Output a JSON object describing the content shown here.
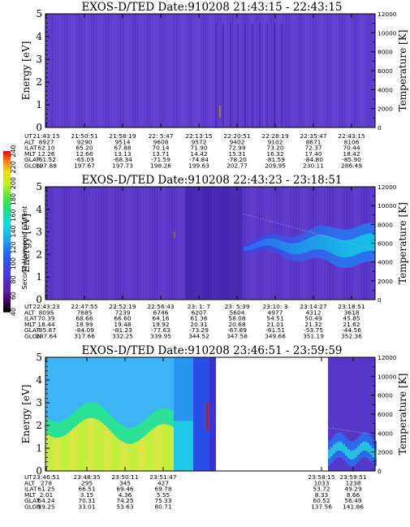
{
  "colorbar": {
    "label": "Second Harmonic Current",
    "ticks": [
      "40",
      "60",
      "80",
      "100",
      "120",
      "140",
      "160",
      "180",
      "200",
      "220",
      "240"
    ]
  },
  "chart_data": [
    {
      "type": "heatmap",
      "title": "EXOS-D/TED   Date:910208  21:43:15 - 22:43:15",
      "ylabel": "Energy [eV]",
      "y2label": "Temperature [K]",
      "ylim": [
        0,
        5
      ],
      "y2lim": [
        0,
        12000
      ],
      "yticks": [
        "0",
        "1",
        "2",
        "3",
        "4",
        "5"
      ],
      "y2ticks": [
        "0",
        "2000",
        "4000",
        "6000",
        "8000",
        "10000",
        "12000"
      ],
      "rows": [
        {
          "label": "UT",
          "values": [
            "21:43:15",
            "21:50:51",
            "21:58:19",
            "22: 5:47",
            "22:13:15",
            "22:20:51",
            "22:28:19",
            "22:35:47",
            "22:43:15"
          ]
        },
        {
          "label": "ALT",
          "values": [
            "8927",
            "9290",
            "9514",
            "9608",
            "9572",
            "9402",
            "9102",
            "8671",
            "8106"
          ]
        },
        {
          "label": "ILAT",
          "values": [
            "62.10",
            "65.20",
            "67.88",
            "70.14",
            "71.90",
            "72.99",
            "73.20",
            "72.37",
            "70.44"
          ]
        },
        {
          "label": "MLT",
          "values": [
            "12.26",
            "12.66",
            "13.13",
            "13.71",
            "14.42",
            "15.31",
            "16.32",
            "17.40",
            "18.42"
          ]
        },
        {
          "label": "GLAT",
          "values": [
            "-61.52",
            "-65.03",
            "-68.34",
            "-71.59",
            "-74.84",
            "-78.20",
            "-81.59",
            "-84.80",
            "-85.90"
          ]
        },
        {
          "label": "GLON",
          "values": [
            "197.88",
            "197.67",
            "197.73",
            "198.26",
            "199.63",
            "202.77",
            "209.95",
            "230.11",
            "286.49"
          ]
        }
      ]
    },
    {
      "type": "heatmap",
      "title": "EXOS-D/TED   Date:910208  22:43:23 - 23:18:51",
      "ylabel": "Energy [eV]",
      "y2label": "Temperature [K]",
      "ylim": [
        0,
        5
      ],
      "y2lim": [
        0,
        12000
      ],
      "yticks": [
        "0",
        "1",
        "2",
        "3",
        "4",
        "5"
      ],
      "y2ticks": [
        "0",
        "2000",
        "4000",
        "6000",
        "8000",
        "10000",
        "12000"
      ],
      "rows": [
        {
          "label": "UT",
          "values": [
            "22:43:23",
            "22:47:55",
            "22:52:19",
            "22:56:43",
            "23: 1: 7",
            "23: 5:39",
            "23:10: 3",
            "23:14:27",
            "23:18:51"
          ]
        },
        {
          "label": "ALT",
          "values": [
            "8095",
            "7685",
            "7239",
            "6746",
            "6207",
            "5604",
            "4977",
            "4312",
            "3618"
          ]
        },
        {
          "label": "ILAT",
          "values": [
            "70.39",
            "68.66",
            "66.60",
            "64.16",
            "61.36",
            "58.08",
            "54.51",
            "50.49",
            "45.85"
          ]
        },
        {
          "label": "MLT",
          "values": [
            "18.44",
            "18.99",
            "19.48",
            "19.92",
            "20.31",
            "20.68",
            "21.01",
            "21.32",
            "21.62"
          ]
        },
        {
          "label": "GLAT",
          "values": [
            "-85.87",
            "-84.09",
            "-81.23",
            "-77.63",
            "-73.29",
            "-67.89",
            "-61.51",
            "-53.75",
            "-44.56"
          ]
        },
        {
          "label": "GLON",
          "values": [
            "287.64",
            "317.66",
            "332.25",
            "339.95",
            "344.52",
            "347.58",
            "349.66",
            "351.19",
            "352.36"
          ]
        }
      ]
    },
    {
      "type": "heatmap",
      "title": "EXOS-D/TED   Date:910208  23:46:51 - 23:59:59",
      "ylabel": "Energy [eV]",
      "y2label": "Temperature [K]",
      "ylim": [
        0,
        5
      ],
      "y2lim": [
        0,
        12000
      ],
      "yticks": [
        "0",
        "1",
        "2",
        "3",
        "4",
        "5"
      ],
      "y2ticks": [
        "0",
        "2000",
        "4000",
        "6000",
        "8000",
        "10000",
        "12000"
      ],
      "rows": [
        {
          "label": "UT",
          "values": [
            "23:46:51",
            "23:48:35",
            "23:50:11",
            "23:51:47",
            "23:58:15",
            "23:59:51"
          ]
        },
        {
          "label": "ALT",
          "values": [
            "278",
            "295",
            "345",
            "427",
            "1033",
            "1238"
          ]
        },
        {
          "label": "ILAT",
          "values": [
            "61.25",
            "66.51",
            "69.46",
            "69.78",
            "53.72",
            "49.29"
          ]
        },
        {
          "label": "MLT",
          "values": [
            "2.01",
            "3.15",
            "4.36",
            "5.55",
            "8.33",
            "8.66"
          ]
        },
        {
          "label": "GLAT",
          "values": [
            "64.24",
            "70.31",
            "74.25",
            "75.33",
            "60.52",
            "56.49"
          ]
        },
        {
          "label": "GLON",
          "values": [
            "19.25",
            "33.01",
            "53.63",
            "80.71",
            "137.56",
            "141.86"
          ]
        }
      ]
    }
  ]
}
